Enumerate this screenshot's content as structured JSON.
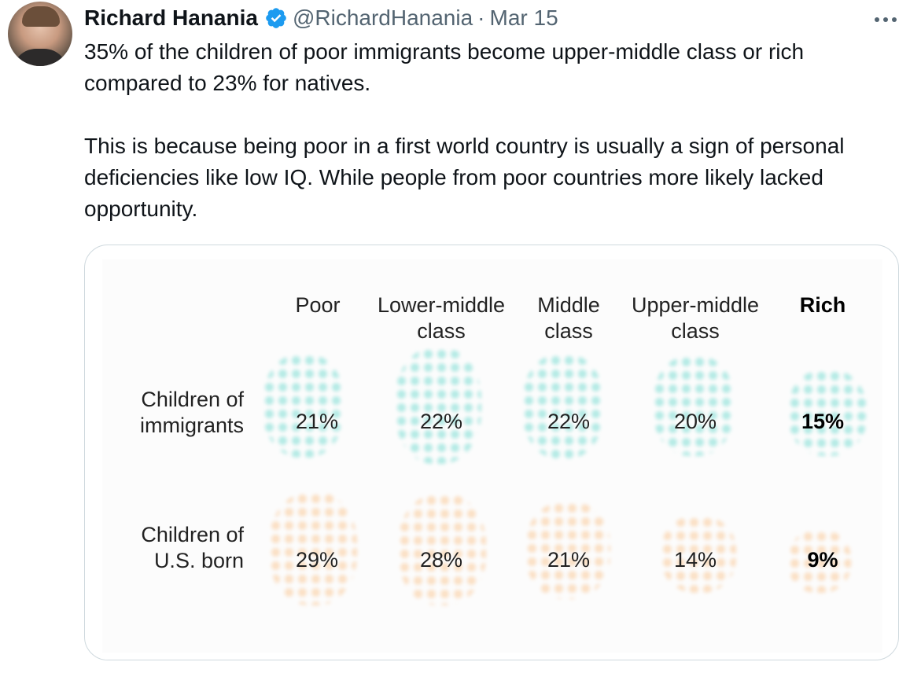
{
  "author": {
    "name": "Richard Hanania",
    "handle": "@RichardHanania",
    "separator": "·",
    "date": "Mar 15"
  },
  "icons": {
    "avatar": "avatar",
    "verified": "verified-badge-icon",
    "more": "more-options-icon"
  },
  "tweet": {
    "paragraph1": "35% of the children of poor immigrants become upper-middle class or rich compared to 23% for natives.",
    "paragraph2": "This is because being poor in a first world country is usually a sign of personal deficiencies like low IQ. While people from poor countries more likely lacked opportunity."
  },
  "table": {
    "columns": [
      {
        "line1": "",
        "line2": "Poor"
      },
      {
        "line1": "Lower-middle",
        "line2": "class"
      },
      {
        "line1": "Middle",
        "line2": "class"
      },
      {
        "line1": "Upper-middle",
        "line2": "class"
      },
      {
        "line1": "",
        "line2": "Rich"
      }
    ],
    "rows": [
      {
        "line1": "Children of",
        "line2": "immigrants",
        "values": [
          "21%",
          "22%",
          "22%",
          "20%",
          "15%"
        ]
      },
      {
        "line1": "Children of",
        "line2": "U.S. born",
        "values": [
          "29%",
          "28%",
          "21%",
          "14%",
          "9%"
        ]
      }
    ]
  },
  "colors": {
    "accent_verified": "#1d9bf0",
    "immigrants_dots": "#78dcd2",
    "us_born_dots": "#fac896",
    "muted_text": "#536471"
  }
}
